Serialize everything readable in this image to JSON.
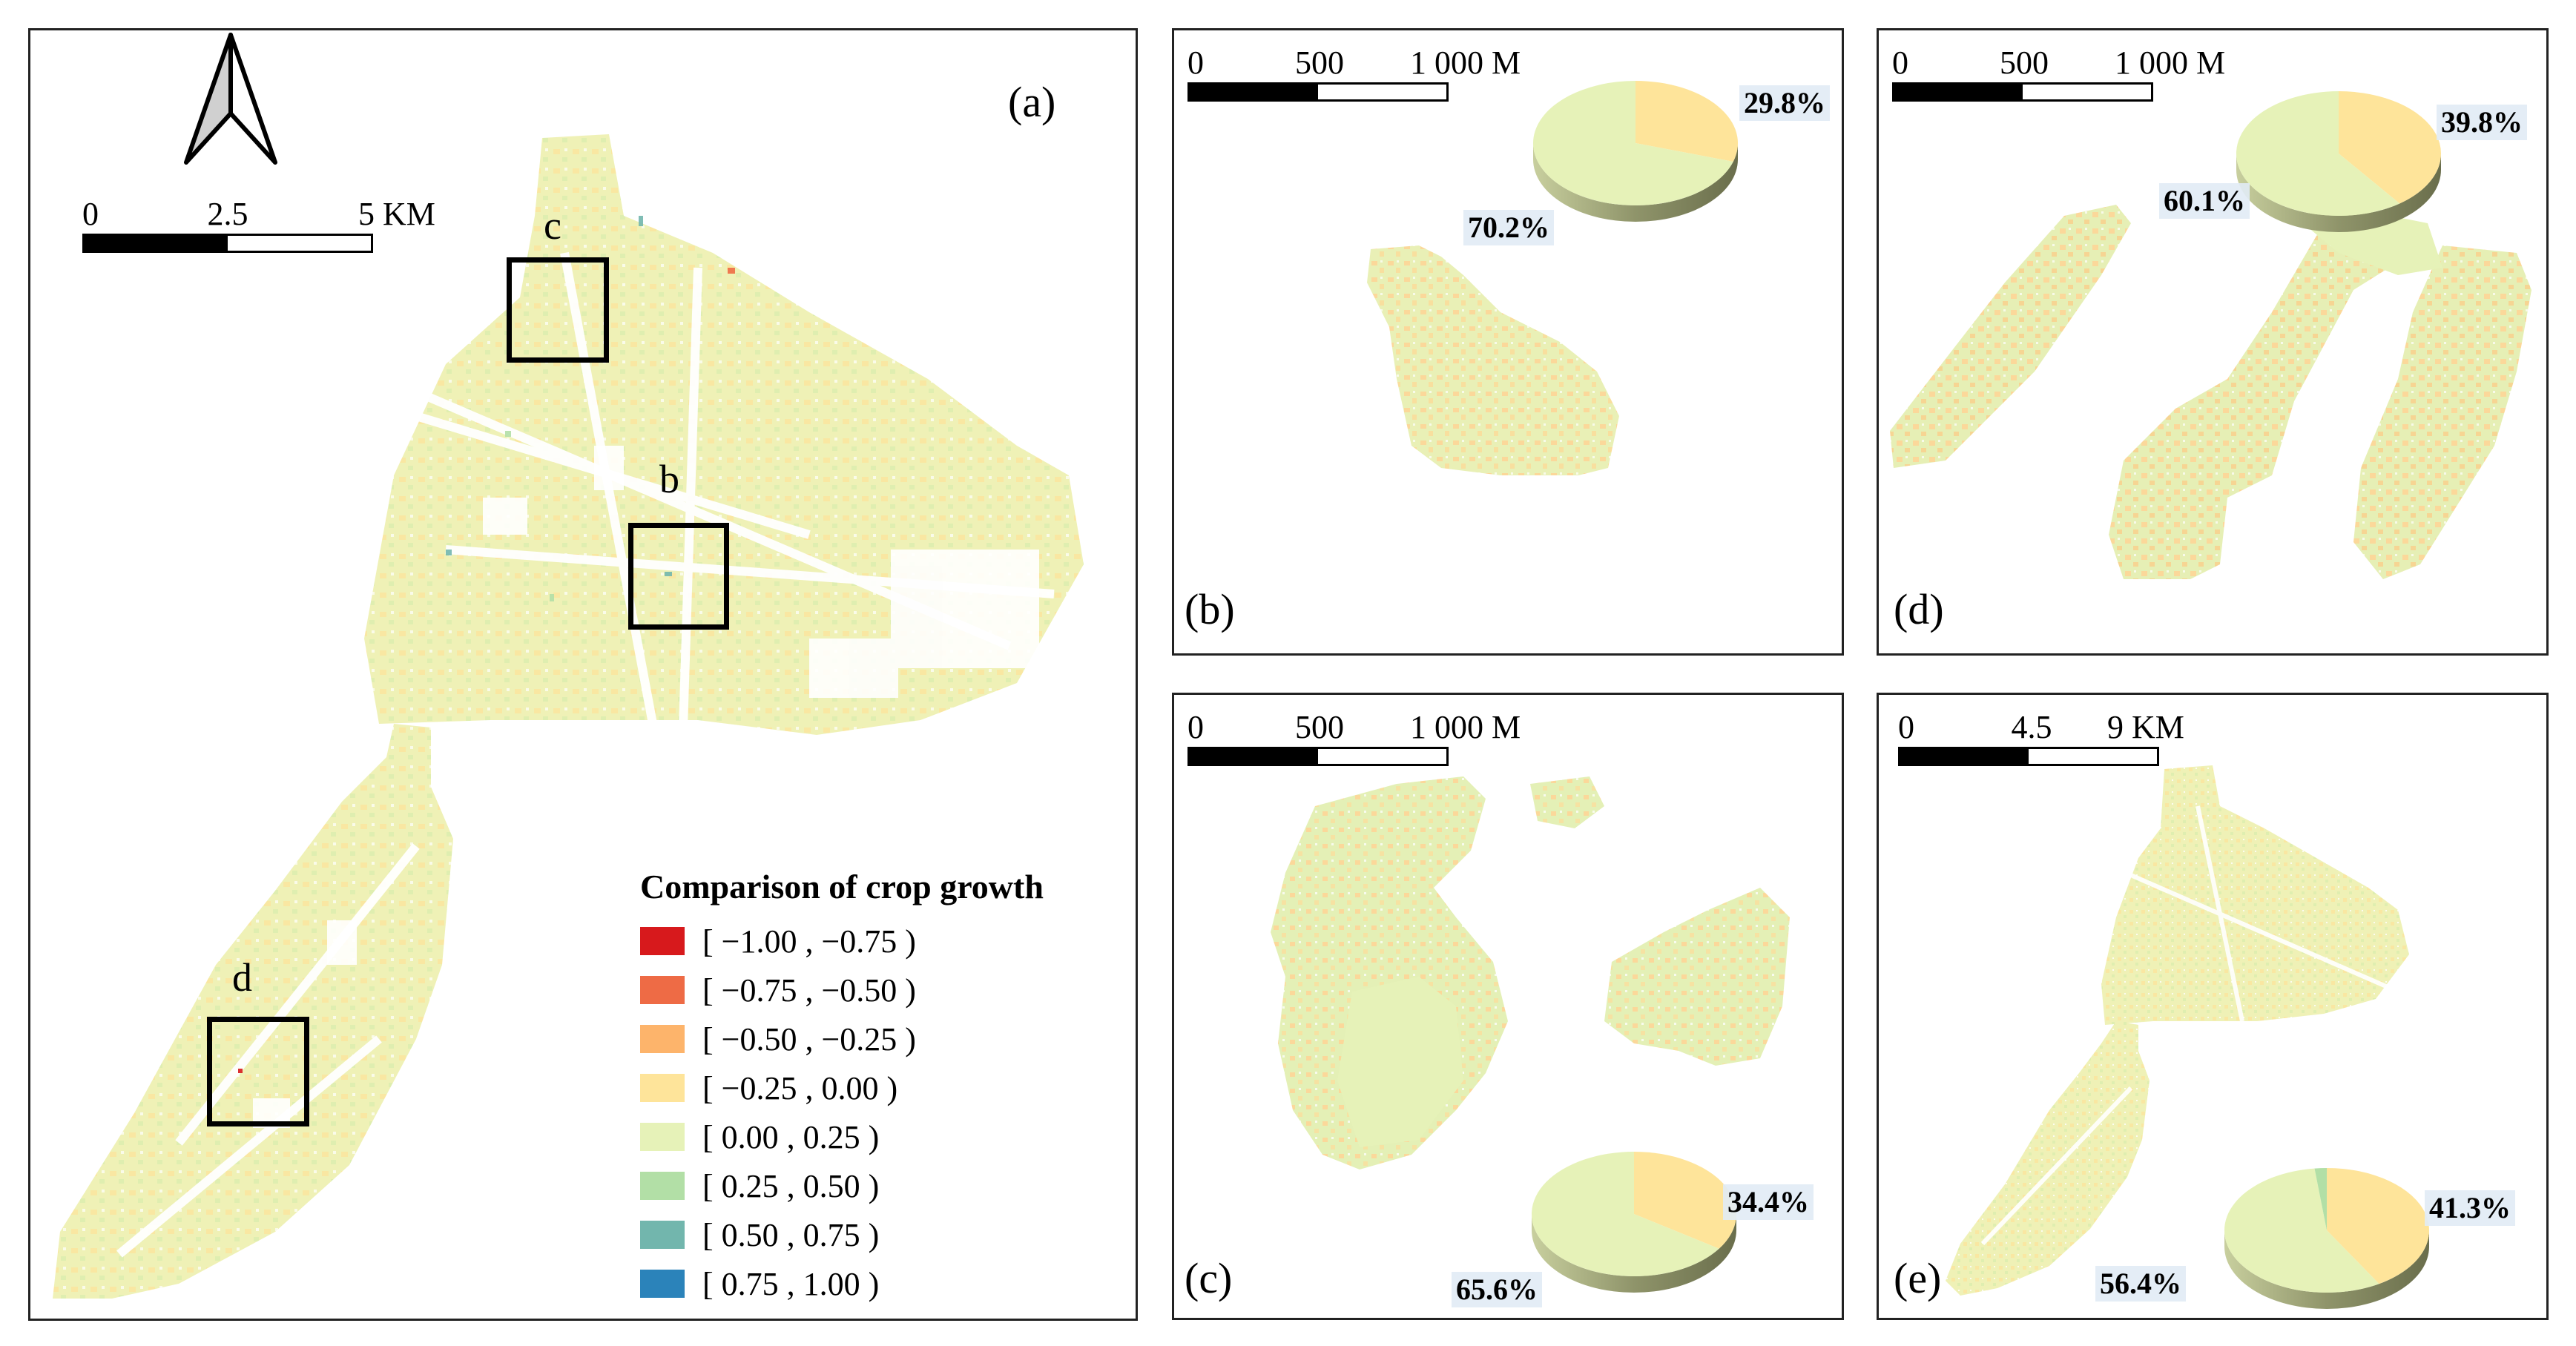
{
  "colors": {
    "c1": "#d7191c",
    "c2": "#ee6b45",
    "c3": "#fdb46b",
    "c4": "#fee49a",
    "c5": "#e6f2b8",
    "c6": "#b2dfa6",
    "c7": "#72b6ad",
    "c8": "#2b83ba",
    "land": "#eff1b6"
  },
  "panel_a": {
    "label": "(a)",
    "north_arrow": "north-arrow-icon",
    "scale": {
      "ticks": [
        "0",
        "2.5",
        "5 KM"
      ]
    },
    "roi": [
      {
        "label": "c"
      },
      {
        "label": "b"
      },
      {
        "label": "d"
      }
    ],
    "legend": {
      "title": "Comparison of crop growth",
      "items": [
        {
          "label": "[ −1.00 , −0.75 )",
          "color": "#d7191c"
        },
        {
          "label": "[ −0.75 , −0.50 )",
          "color": "#ee6b45"
        },
        {
          "label": "[ −0.50 , −0.25 )",
          "color": "#fdb46b"
        },
        {
          "label": "[ −0.25 , 0.00 )",
          "color": "#fee49a"
        },
        {
          "label": "[ 0.00 , 0.25 )",
          "color": "#e6f2b8"
        },
        {
          "label": "[ 0.25 , 0.50 )",
          "color": "#b2dfa6"
        },
        {
          "label": "[ 0.50 , 0.75 )",
          "color": "#72b6ad"
        },
        {
          "label": "[ 0.75 , 1.00 )",
          "color": "#2b83ba"
        }
      ]
    }
  },
  "panel_b": {
    "label": "(b)",
    "scale": {
      "ticks": [
        "0",
        "500",
        "1 000 M"
      ]
    },
    "pie": {
      "neg_pct": 29.8,
      "pos_pct": 70.2,
      "neg_label": "29.8%",
      "pos_label": "70.2%"
    }
  },
  "panel_d": {
    "label": "(d)",
    "scale": {
      "ticks": [
        "0",
        "500",
        "1 000 M"
      ]
    },
    "pie": {
      "neg_pct": 39.8,
      "pos_pct": 60.1,
      "neg_label": "39.8%",
      "pos_label": "60.1%"
    }
  },
  "panel_c": {
    "label": "(c)",
    "scale": {
      "ticks": [
        "0",
        "500",
        "1 000 M"
      ]
    },
    "pie": {
      "neg_pct": 34.4,
      "pos_pct": 65.6,
      "neg_label": "34.4%",
      "pos_label": "65.6%"
    }
  },
  "panel_e": {
    "label": "(e)",
    "scale": {
      "ticks": [
        "0",
        "4.5",
        "9 KM"
      ]
    },
    "pie": {
      "neg_pct": 41.3,
      "pos_pct": 56.4,
      "green_pct": 1.9,
      "neg_label": "41.3%",
      "pos_label": "56.4%"
    }
  }
}
